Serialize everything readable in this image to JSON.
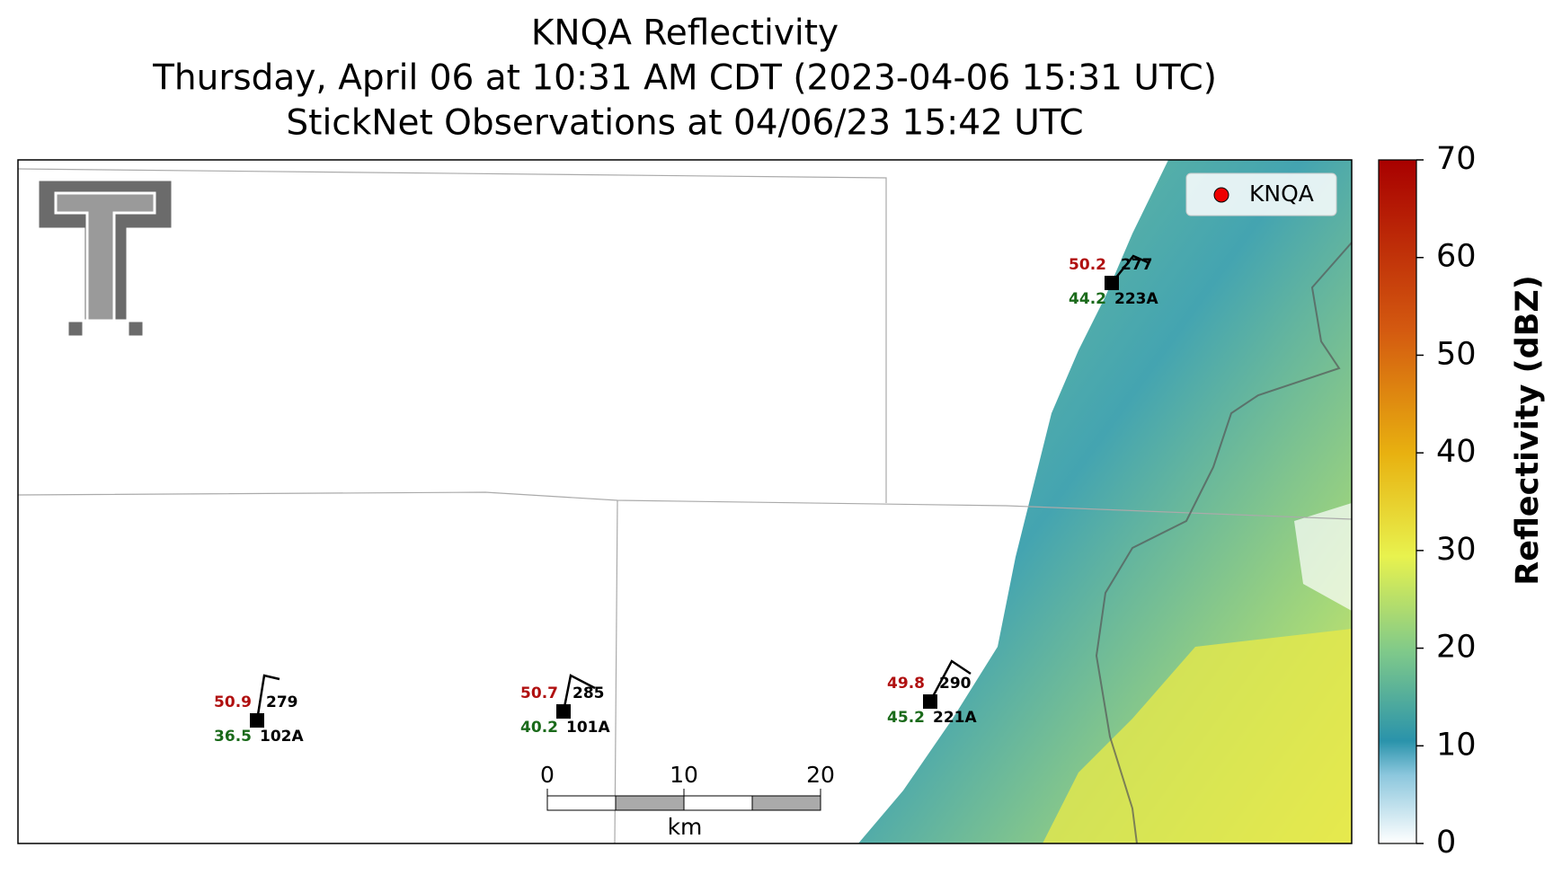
{
  "header": {
    "title_lines": [
      "KNQA Reflectivity",
      "Thursday, April 06 at 10:31 AM CDT (2023-04-06 15:31 UTC)",
      "StickNet Observations at 04/06/23 15:42 UTC"
    ]
  },
  "legend": {
    "label": "KNQA"
  },
  "stations": [
    {
      "id": "102A",
      "temp": "50.9",
      "dewpoint": "36.5",
      "value": "279"
    },
    {
      "id": "101A",
      "temp": "50.7",
      "dewpoint": "40.2",
      "value": "285"
    },
    {
      "id": "221A",
      "temp": "49.8",
      "dewpoint": "45.2",
      "value": "290"
    },
    {
      "id": "223A",
      "temp": "50.2",
      "dewpoint": "44.2",
      "value": "277"
    }
  ],
  "scalebar": {
    "ticks": [
      0,
      10,
      20
    ],
    "unit": "km"
  },
  "colorbar": {
    "label": "Reflectivity (dBZ)",
    "lim": [
      0,
      70
    ],
    "ticks": [
      0,
      10,
      20,
      30,
      40,
      50,
      60,
      70
    ]
  }
}
